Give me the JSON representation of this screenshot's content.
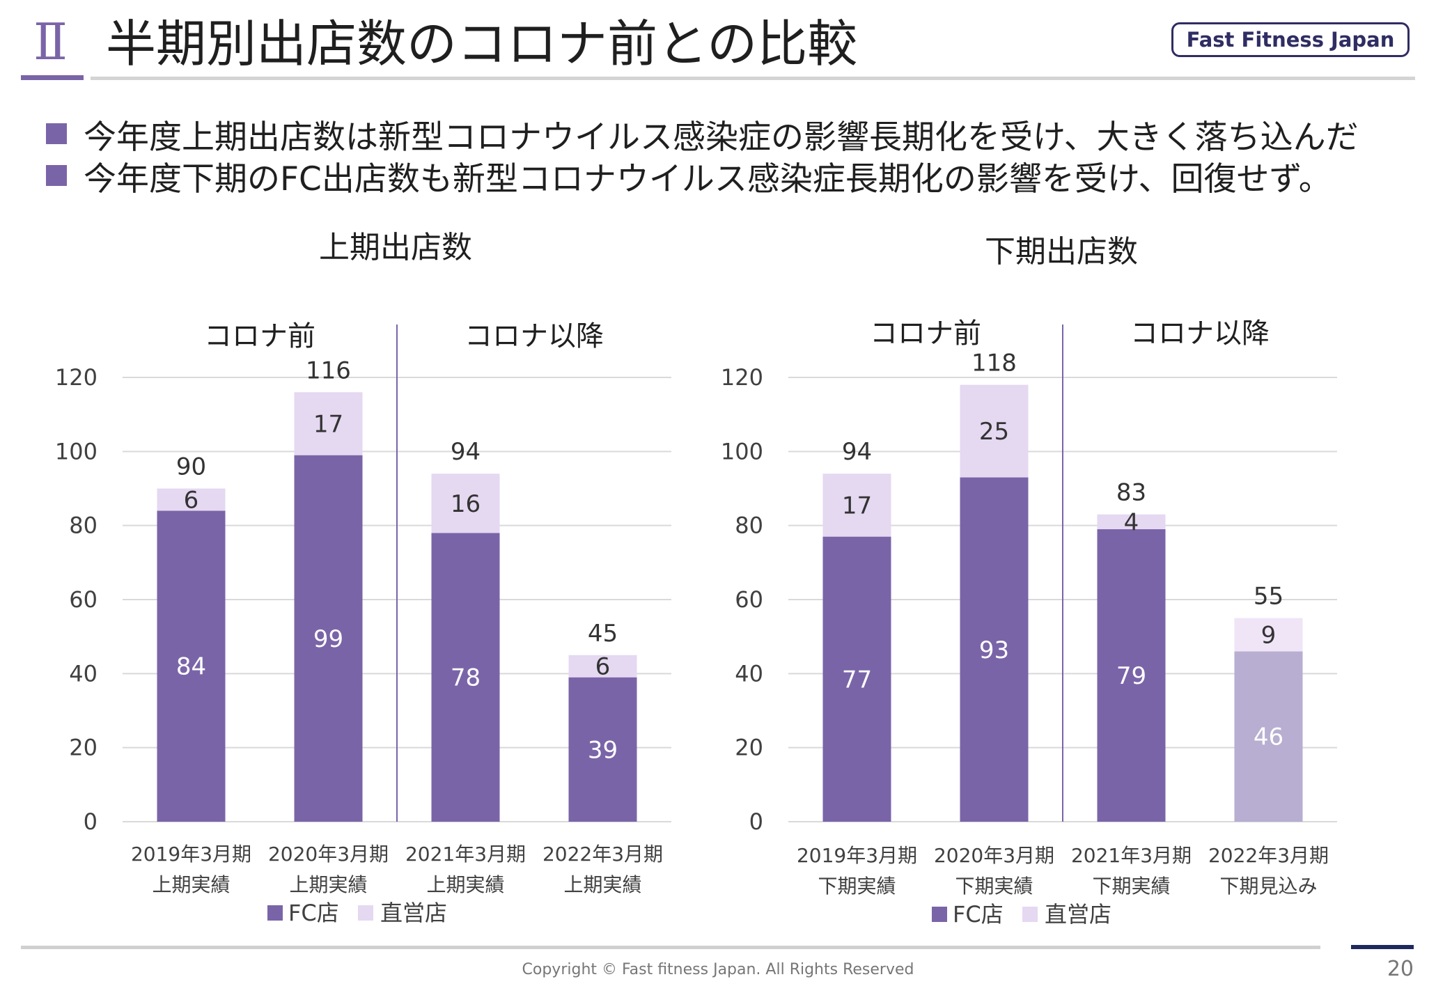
{
  "header": {
    "section_number": "Ⅱ",
    "title": "半期別出店数のコロナ前との比較",
    "logo": "Fast Fitness Japan"
  },
  "bullets": [
    "今年度上期出店数は新型コロナウイルス感染症の影響長期化を受け、大きく落ち込んだ",
    "今年度下期のFC出店数も新型コロナウイルス感染症長期化の影響を受け、回復せず。"
  ],
  "colors": {
    "fc": "#7a64a8",
    "direct": "#e5d8f1",
    "fc_forecast": "#b7aed1",
    "direct_forecast": "#efe5f7",
    "accent": "#7a64a8",
    "grid": "#d9d9d9"
  },
  "chart_data": [
    {
      "type": "bar",
      "stacked": true,
      "title": "上期出店数",
      "categories": [
        [
          "2019年3月期",
          "上期実績"
        ],
        [
          "2020年3月期",
          "上期実績"
        ],
        [
          "2021年3月期",
          "上期実績"
        ],
        [
          "2022年3月期",
          "上期実績"
        ]
      ],
      "series": [
        {
          "name": "FC店",
          "values": [
            84,
            99,
            78,
            39
          ]
        },
        {
          "name": "直営店",
          "values": [
            6,
            17,
            16,
            6
          ]
        }
      ],
      "totals": [
        90,
        116,
        94,
        45
      ],
      "ylim": [
        0,
        120
      ],
      "yticks": [
        0,
        20,
        40,
        60,
        80,
        100,
        120
      ],
      "grid": true,
      "period_labels": [
        "コロナ前",
        "コロナ以降"
      ],
      "divider_after_index": 1,
      "forecast_index": null,
      "legend": "bottom"
    },
    {
      "type": "bar",
      "stacked": true,
      "title": "下期出店数",
      "categories": [
        [
          "2019年3月期",
          "下期実績"
        ],
        [
          "2020年3月期",
          "下期実績"
        ],
        [
          "2021年3月期",
          "下期実績"
        ],
        [
          "2022年3月期",
          "下期見込み"
        ]
      ],
      "series": [
        {
          "name": "FC店",
          "values": [
            77,
            93,
            79,
            46
          ]
        },
        {
          "name": "直営店",
          "values": [
            17,
            25,
            4,
            9
          ]
        }
      ],
      "totals": [
        94,
        118,
        83,
        55
      ],
      "ylim": [
        0,
        120
      ],
      "yticks": [
        0,
        20,
        40,
        60,
        80,
        100,
        120
      ],
      "grid": true,
      "period_labels": [
        "コロナ前",
        "コロナ以降"
      ],
      "divider_after_index": 1,
      "forecast_index": 3,
      "legend": "bottom"
    }
  ],
  "footer": {
    "copyright": "Copyright © Fast fitness Japan. All Rights Reserved",
    "page": "20"
  }
}
